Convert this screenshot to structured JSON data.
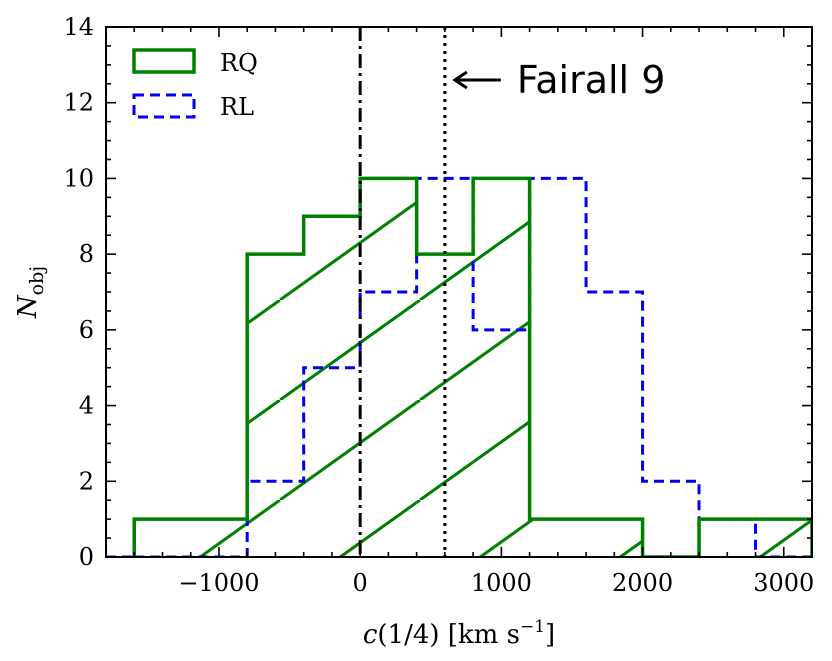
{
  "chart_data": {
    "type": "histogram",
    "xlim": [
      -1800,
      3200
    ],
    "ylim": [
      0,
      14
    ],
    "xticks": [
      -1000,
      0,
      1000,
      2000,
      3000
    ],
    "xtick_labels": [
      "−1000",
      "0",
      "1000",
      "2000",
      "3000"
    ],
    "yticks": [
      0,
      2,
      4,
      6,
      8,
      10,
      12,
      14
    ],
    "ytick_labels": [
      "0",
      "2",
      "4",
      "6",
      "8",
      "10",
      "12",
      "14"
    ],
    "xlabel_parts": {
      "main": "c(1/4)  [km s",
      "sup": "−1",
      "close": "]"
    },
    "ylabel_parts": {
      "main": "N",
      "sub": "obj"
    },
    "series": [
      {
        "name": "RQ",
        "color": "#008000",
        "style": "solid-hatched",
        "bin_edges": [
          -1600,
          -1200,
          -800,
          -400,
          0,
          400,
          800,
          1200,
          1600,
          2000,
          2400,
          2800,
          3200
        ],
        "counts": [
          1,
          1,
          8,
          9,
          10,
          8,
          10,
          1,
          1,
          0,
          1,
          1
        ]
      },
      {
        "name": "RL",
        "color": "#0000ee",
        "style": "dashed",
        "bin_edges": [
          -1600,
          -1200,
          -800,
          -400,
          0,
          400,
          800,
          1200,
          1600,
          2000,
          2400,
          2800,
          3200
        ],
        "counts": [
          0,
          0,
          2,
          5,
          7,
          10,
          6,
          10,
          7,
          2,
          1,
          0
        ]
      }
    ],
    "vlines": [
      {
        "x": 0,
        "style": "dashdot",
        "label": ""
      },
      {
        "x": 600,
        "style": "dotted",
        "label": "Fairall 9"
      }
    ],
    "annotation": {
      "text": "Fairall 9",
      "arrow": "←"
    },
    "legend": {
      "position": "top-left",
      "entries": [
        "RQ",
        "RL"
      ]
    }
  }
}
